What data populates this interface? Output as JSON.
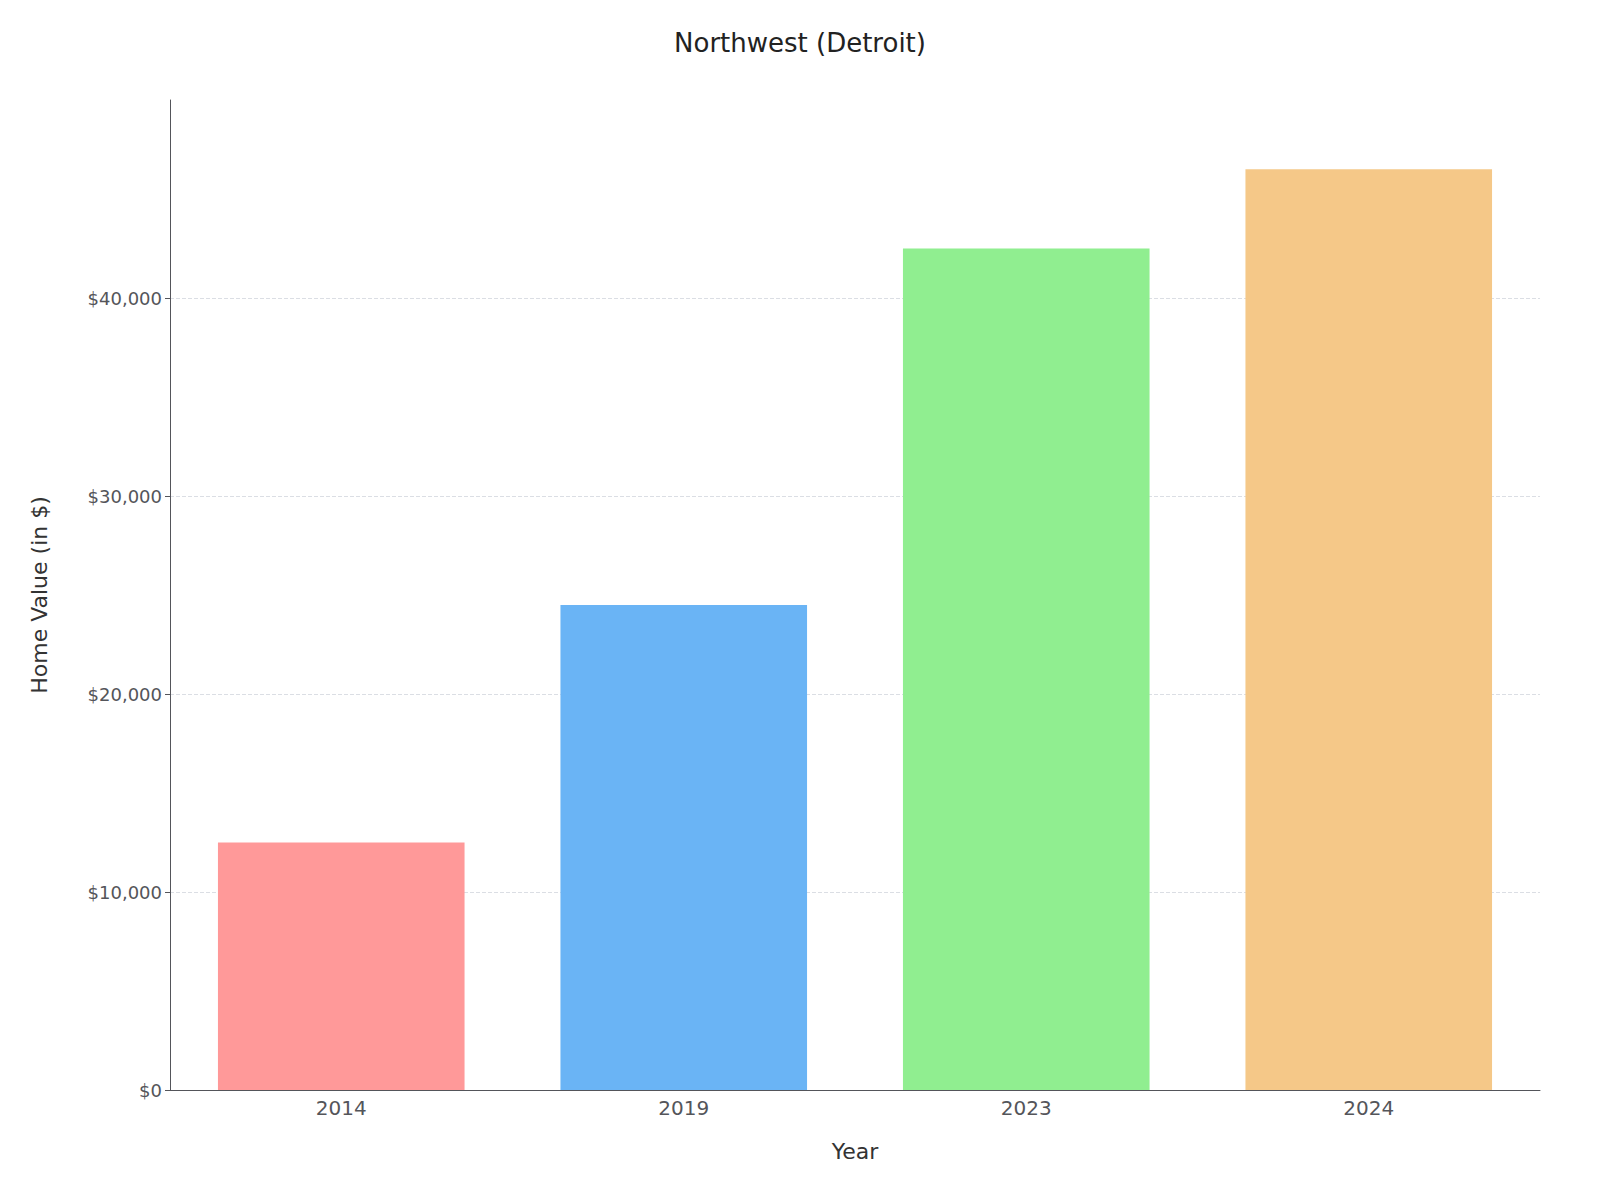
{
  "chart_data": {
    "type": "bar",
    "title": "Northwest (Detroit)",
    "xlabel": "Year",
    "ylabel": "Home Value (in $)",
    "categories": [
      "2014",
      "2019",
      "2023",
      "2024"
    ],
    "values": [
      12500,
      24500,
      42500,
      46500
    ],
    "colors": [
      "#FF9999",
      "#6AB4F5",
      "#90EE90",
      "#F5C888"
    ],
    "ylim": [
      0,
      50000
    ],
    "yticks": [
      {
        "value": 0,
        "label": "$0"
      },
      {
        "value": 10000,
        "label": "$10,000"
      },
      {
        "value": 20000,
        "label": "$20,000"
      },
      {
        "value": 30000,
        "label": "$30,000"
      },
      {
        "value": 40000,
        "label": "$40,000"
      }
    ],
    "grid": true
  }
}
